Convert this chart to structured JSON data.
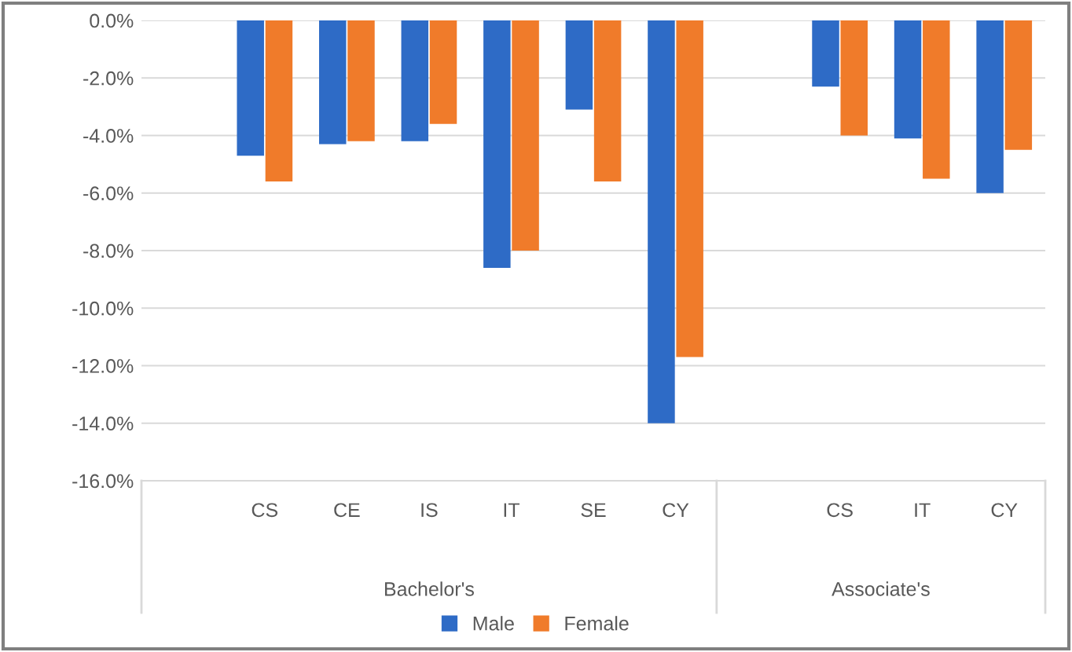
{
  "chart_data": {
    "type": "bar",
    "categories": [
      null,
      "CS",
      "CE",
      "IS",
      "IT",
      "SE",
      "CY",
      null,
      "CS",
      "IT",
      "CY"
    ],
    "series": [
      {
        "name": "Male",
        "color": "#2e6bc6",
        "values": [
          null,
          -4.7,
          -4.3,
          -4.2,
          -8.6,
          -3.1,
          -14.0,
          null,
          -2.3,
          -4.1,
          -6.0
        ]
      },
      {
        "name": "Female",
        "color": "#f07b2a",
        "values": [
          null,
          -5.6,
          -4.2,
          -3.6,
          -8.0,
          -5.6,
          -11.7,
          null,
          -4.0,
          -5.5,
          -4.5
        ]
      }
    ],
    "ylim": [
      -16,
      0
    ],
    "yticks": [
      {
        "value": 0,
        "label": "0.0%"
      },
      {
        "value": -2,
        "label": "-2.0%"
      },
      {
        "value": -4,
        "label": "-4.0%"
      },
      {
        "value": -6,
        "label": "-6.0%"
      },
      {
        "value": -8,
        "label": "-8.0%"
      },
      {
        "value": -10,
        "label": "-10.0%"
      },
      {
        "value": -12,
        "label": "-12.0%"
      },
      {
        "value": -14,
        "label": "-14.0%"
      },
      {
        "value": -16,
        "label": "-16.0%"
      }
    ],
    "grid": "y",
    "legend": "bottom",
    "annotations": [
      "Bachelor's",
      "Associate's"
    ]
  }
}
